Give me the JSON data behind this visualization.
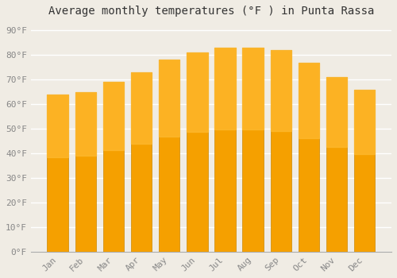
{
  "title": "Average monthly temperatures (°F ) in Punta Rassa",
  "months": [
    "Jan",
    "Feb",
    "Mar",
    "Apr",
    "May",
    "Jun",
    "Jul",
    "Aug",
    "Sep",
    "Oct",
    "Nov",
    "Dec"
  ],
  "values": [
    64,
    65,
    69,
    73,
    78,
    81,
    83,
    83,
    82,
    77,
    71,
    66
  ],
  "bar_color_top": "#FFBB33",
  "bar_color_bottom": "#F5A000",
  "bar_edge_color": "#CC8800",
  "background_color": "#f0ece4",
  "plot_bg_color": "#f0ece4",
  "yticks": [
    0,
    10,
    20,
    30,
    40,
    50,
    60,
    70,
    80,
    90
  ],
  "ylim": [
    0,
    93
  ],
  "ylabel_format": "{0}°F",
  "title_fontsize": 10,
  "tick_fontsize": 8,
  "grid_color": "#ffffff",
  "bar_width": 0.75,
  "tick_color": "#888888"
}
